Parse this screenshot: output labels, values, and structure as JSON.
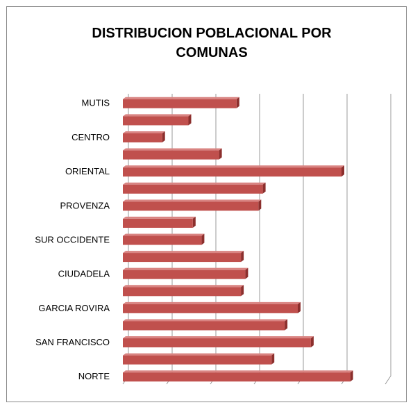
{
  "chart_data": {
    "type": "bar",
    "orientation": "horizontal",
    "title": "DISTRIBUCION POBLACIONAL POR COMUNAS",
    "categories": [
      "MUTIS",
      null,
      "CENTRO",
      null,
      "ORIENTAL",
      null,
      "PROVENZA",
      null,
      "SUR OCCIDENTE",
      null,
      "CIUDADELA",
      null,
      "GARCIA ROVIRA",
      null,
      "SAN FRANCISCO",
      null,
      "NORTE"
    ],
    "values": [
      2.6,
      1.5,
      0.9,
      2.2,
      5.0,
      3.2,
      3.1,
      1.6,
      1.8,
      2.7,
      2.8,
      2.7,
      4.0,
      3.7,
      4.3,
      3.4,
      5.2
    ],
    "color": "#c0504d",
    "xlim": [
      0,
      6
    ],
    "xticks": [
      0,
      1,
      2,
      3,
      4,
      5,
      6
    ],
    "grid": true
  }
}
